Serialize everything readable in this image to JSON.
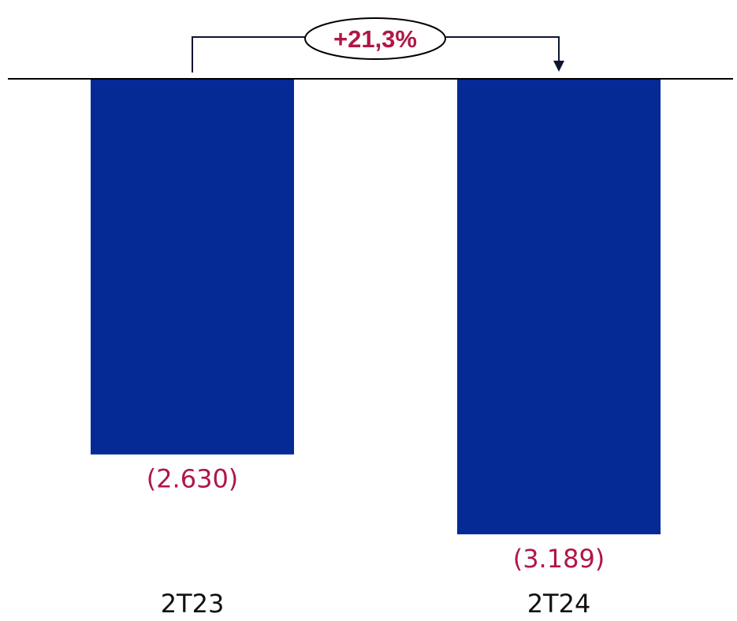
{
  "chart_data": {
    "type": "bar",
    "categories": [
      "2T23",
      "2T24"
    ],
    "values": [
      -2630,
      -3189
    ],
    "value_labels": [
      "(2.630)",
      "(3.189)"
    ],
    "title": "",
    "xlabel": "",
    "ylabel": "",
    "ylim": [
      -3189,
      0
    ],
    "grid": false,
    "legend": "none",
    "annotation": {
      "text": "+21,3%",
      "from_category": "2T23",
      "to_category": "2T24"
    }
  },
  "colors": {
    "bar": "#052A96",
    "value_label": "#B01746",
    "growth_text": "#B01746",
    "axis": "#000000",
    "connector": "#0A1630",
    "category_label": "#111111"
  }
}
